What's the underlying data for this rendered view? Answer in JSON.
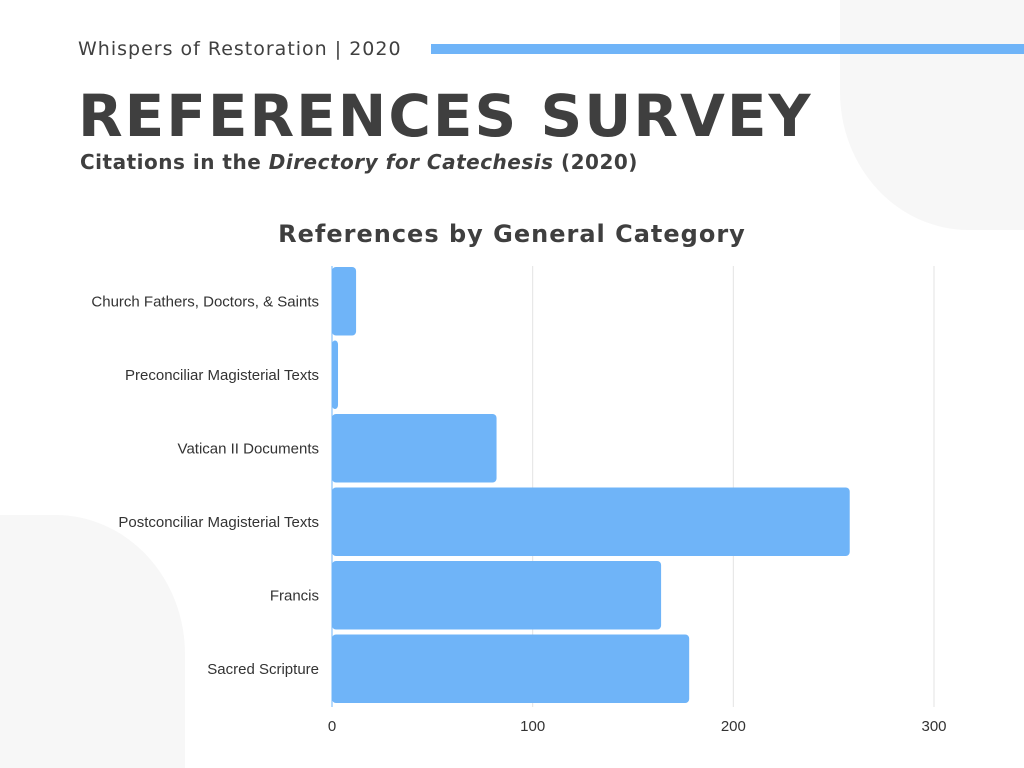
{
  "header": {
    "brand": "Whispers of Restoration | 2020",
    "title": "REFERENCES SURVEY",
    "subtitle_pre": "Citations in the ",
    "subtitle_italic": "Directory for Catechesis",
    "subtitle_post": " (2020)"
  },
  "colors": {
    "bar": "#6fb4f8",
    "accent": "#6fb4f8",
    "text": "#3f3f3f"
  },
  "chart_data": {
    "type": "bar",
    "orientation": "horizontal",
    "title": "References by General Category",
    "categories": [
      "Church Fathers, Doctors, & Saints",
      "Preconciliar Magisterial Texts",
      "Vatican II Documents",
      "Postconciliar Magisterial Texts",
      "Francis",
      "Sacred Scripture"
    ],
    "values": [
      12,
      3,
      82,
      258,
      164,
      178
    ],
    "xlim": [
      0,
      300
    ],
    "xticks": [
      "0",
      "100",
      "200",
      "300"
    ],
    "grid": true,
    "xlabel": "",
    "ylabel": ""
  }
}
